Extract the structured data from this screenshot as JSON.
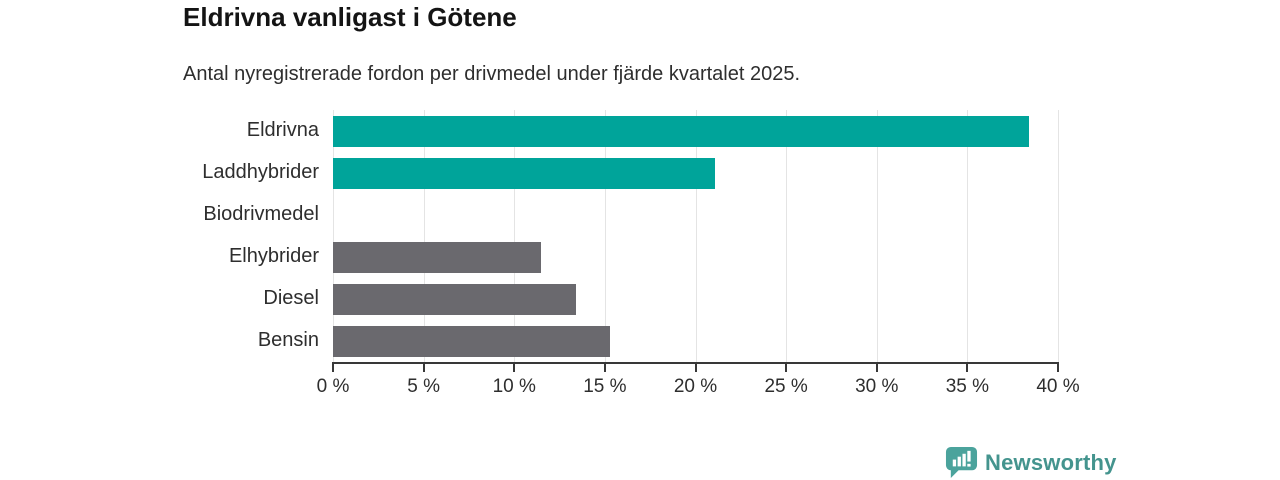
{
  "header": {
    "title": "Eldrivna vanligast i Götene",
    "subtitle": "Antal nyregistrerade fordon per drivmedel under fjärde kvartalet 2025."
  },
  "colors": {
    "teal_bar": "#00a49a",
    "gray_bar": "#6a696e",
    "gridline": "#e4e4e4",
    "axis": "#383838",
    "title_text": "#141414",
    "body_text": "#2e2e2e",
    "brand": "#44948e",
    "brand_icon": "#4ba39c"
  },
  "chart_data": {
    "type": "bar",
    "orientation": "horizontal",
    "title": "Eldrivna vanligast i Götene",
    "subtitle": "Antal nyregistrerade fordon per drivmedel under fjärde kvartalet 2025.",
    "categories": [
      "Eldrivna",
      "Laddhybrider",
      "Biodrivmedel",
      "Elhybrider",
      "Diesel",
      "Bensin"
    ],
    "values": [
      38.4,
      21.1,
      0,
      11.5,
      13.4,
      15.3
    ],
    "bar_colors": [
      "#00a49a",
      "#00a49a",
      "#00a49a",
      "#6a696e",
      "#6a696e",
      "#6a696e"
    ],
    "xlabel": "",
    "ylabel": "",
    "xlim": [
      0,
      40
    ],
    "x_tick_values": [
      0,
      5,
      10,
      15,
      20,
      25,
      30,
      35,
      40
    ],
    "x_ticks": [
      "0 %",
      "5 %",
      "10 %",
      "15 %",
      "20 %",
      "25 %",
      "30 %",
      "35 %",
      "40 %"
    ],
    "grid": true,
    "legend": false
  },
  "footer": {
    "brand_name": "Newsworthy",
    "logo_icon": "bar-chart-speech-bubble-icon"
  }
}
